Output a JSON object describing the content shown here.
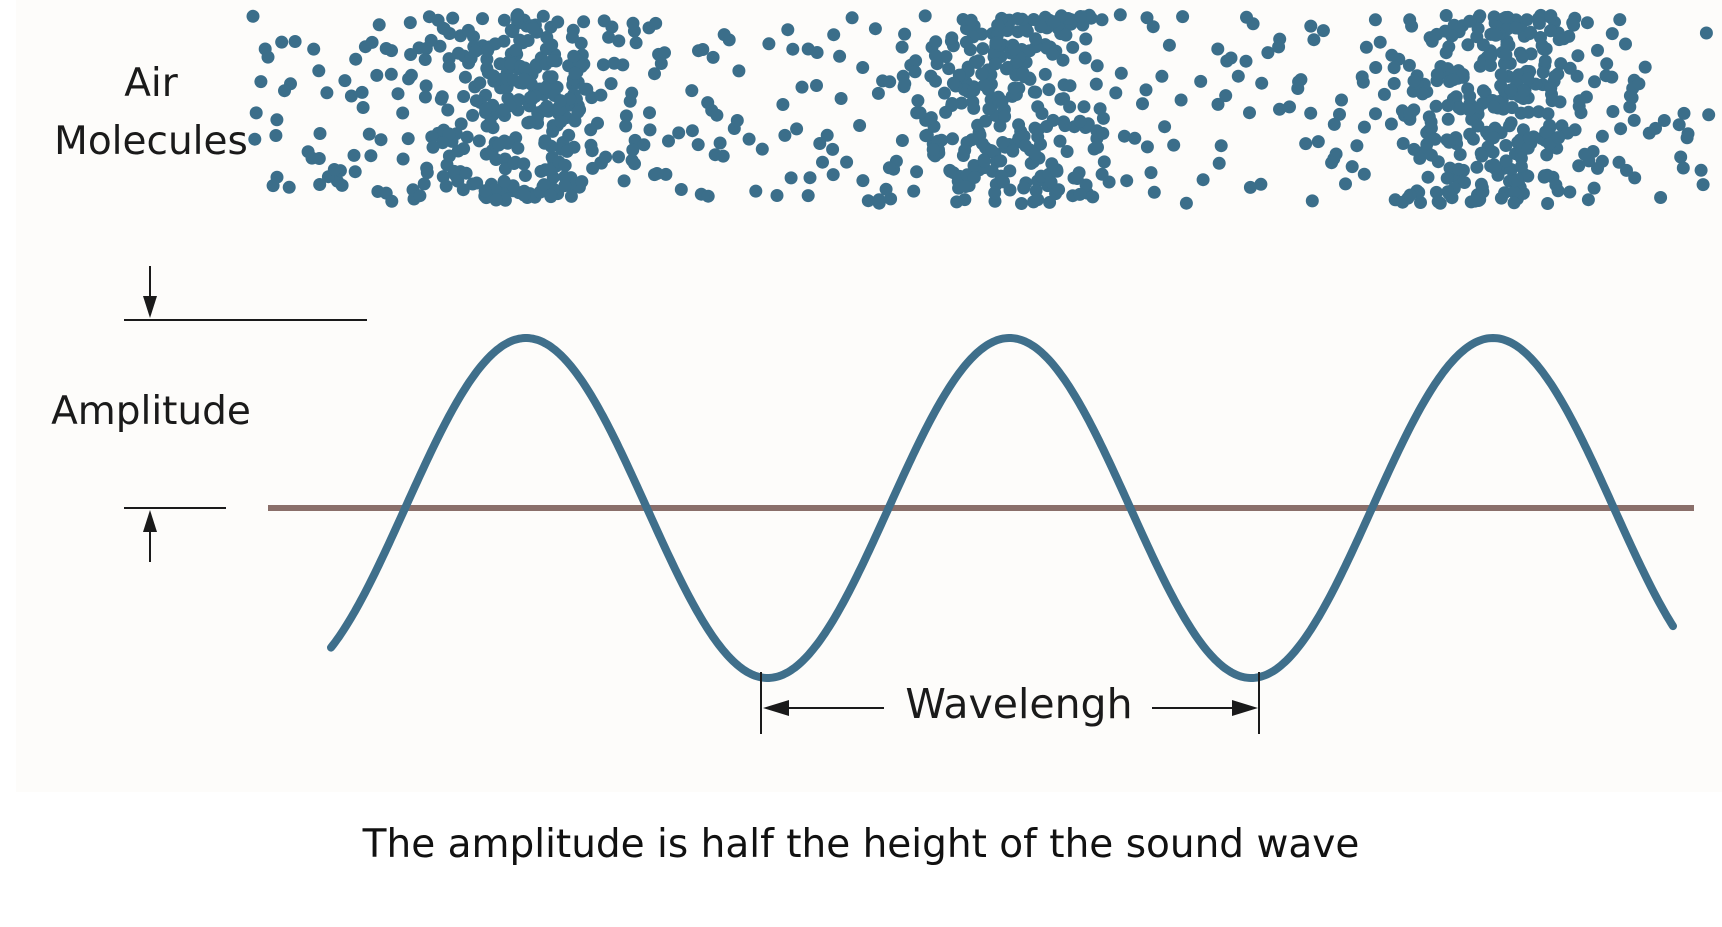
{
  "labels": {
    "air_molecules_line1": "Air",
    "air_molecules_line2": "Molecules",
    "amplitude": "Amplitude",
    "wavelength": "Wavelengh"
  },
  "caption": "The amplitude is half the height of the sound wave",
  "colors": {
    "molecule": "#3b6e8a",
    "wave": "#3f6f8b",
    "baseline": "#8a6f6a",
    "arrow": "#1a1a1a",
    "panel": "#fdfcfa"
  },
  "icons": {
    "amplitude_top_arrow": "arrow-down-icon",
    "amplitude_bottom_arrow": "arrow-up-icon",
    "wavelength_left_arrow": "arrow-left-icon",
    "wavelength_right_arrow": "arrow-right-icon"
  },
  "wave": {
    "cycles": 3
  }
}
